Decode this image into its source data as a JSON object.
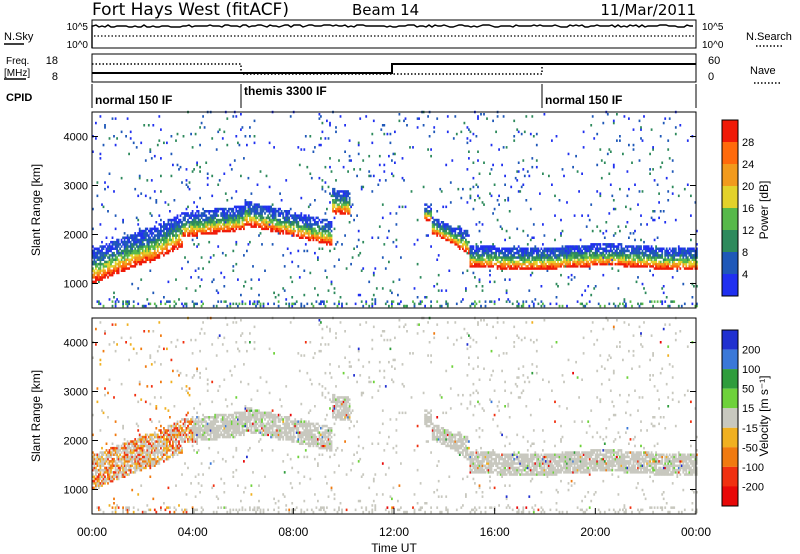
{
  "header": {
    "title": "Fort Hays West (fitACF)",
    "beam": "Beam 14",
    "date": "11/Mar/2011"
  },
  "panels": {
    "nsky": {
      "label": "N.Sky",
      "right_label": "N.Search",
      "ticks_left": [
        "10^5",
        "10^0"
      ],
      "ticks_right": [
        "10^5",
        "10^0"
      ]
    },
    "freq": {
      "label_line1": "Freq.",
      "label_line2": "[MHz]",
      "right_label": "Nave",
      "ticks_left": [
        "18",
        "8"
      ],
      "ticks_right": [
        "60",
        "0"
      ]
    },
    "cpid": {
      "label": "CPID",
      "segments": [
        {
          "name": "normal 150 IF",
          "start": 0
        },
        {
          "name": "themis 3300 IF",
          "start": 6
        },
        {
          "name": "normal 150 IF",
          "start": 18
        }
      ]
    }
  },
  "chart_data": [
    {
      "type": "heatmap",
      "title": "",
      "ylabel": "Slant Range [km]",
      "yticks": [
        "1000",
        "2000",
        "3000",
        "4000"
      ],
      "ylim": [
        500,
        4500
      ],
      "xlim": [
        0,
        24
      ],
      "colorbar": {
        "label": "Power [dB]",
        "ticks": [
          "4",
          "8",
          "12",
          "16",
          "20",
          "24",
          "28"
        ],
        "colors": [
          "#2030f0",
          "#1f58b8",
          "#2e8a5c",
          "#57b94a",
          "#e3d22a",
          "#f29a1c",
          "#ff6a0c",
          "#f01a08"
        ]
      }
    },
    {
      "type": "heatmap",
      "title": "",
      "ylabel": "Slant Range [km]",
      "yticks": [
        "1000",
        "2000",
        "3000",
        "4000"
      ],
      "ylim": [
        500,
        4500
      ],
      "xlim": [
        0,
        24
      ],
      "xlabel": "Time UT",
      "xticks": [
        "00:00",
        "04:00",
        "08:00",
        "12:00",
        "16:00",
        "20:00",
        "00:00"
      ],
      "colorbar": {
        "label": "Velocity [m s⁻¹]",
        "ticks": [
          "200",
          "100",
          "50",
          "15",
          "-15",
          "-50",
          "-100",
          "-200"
        ],
        "colors": [
          "#2030d0",
          "#3a78d8",
          "#2f9c3c",
          "#6ed23a",
          "#c8c8bf",
          "#f0b020",
          "#f07a10",
          "#f03010",
          "#e80808"
        ]
      }
    }
  ]
}
